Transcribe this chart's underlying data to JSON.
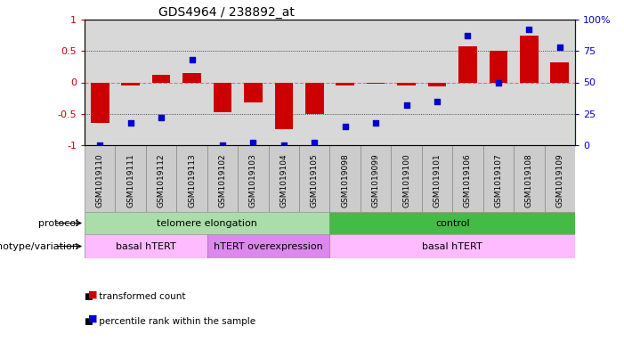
{
  "title": "GDS4964 / 238892_at",
  "samples": [
    "GSM1019110",
    "GSM1019111",
    "GSM1019112",
    "GSM1019113",
    "GSM1019102",
    "GSM1019103",
    "GSM1019104",
    "GSM1019105",
    "GSM1019098",
    "GSM1019099",
    "GSM1019100",
    "GSM1019101",
    "GSM1019106",
    "GSM1019107",
    "GSM1019108",
    "GSM1019109"
  ],
  "transformed_count": [
    -0.65,
    -0.05,
    0.12,
    0.15,
    -0.48,
    -0.32,
    -0.75,
    -0.5,
    -0.05,
    -0.02,
    -0.05,
    -0.07,
    0.57,
    0.5,
    0.75,
    0.32
  ],
  "percentile_rank": [
    0,
    18,
    22,
    68,
    0,
    2,
    0,
    2,
    15,
    18,
    32,
    35,
    87,
    50,
    92,
    78
  ],
  "bar_color": "#cc0000",
  "scatter_color": "#0000cc",
  "plot_bg": "#d8d8d8",
  "ylim_left": [
    -1,
    1
  ],
  "ylim_right": [
    0,
    100
  ],
  "yticks_left": [
    -1,
    -0.5,
    0,
    0.5,
    1
  ],
  "yticks_right": [
    0,
    25,
    50,
    75,
    100
  ],
  "zero_line_color": "#ff6666",
  "dotted_line_color": "#222222",
  "protocol_groups": [
    {
      "label": "telomere elongation",
      "start": 0,
      "end": 8,
      "color": "#aaddaa"
    },
    {
      "label": "control",
      "start": 8,
      "end": 16,
      "color": "#44bb44"
    }
  ],
  "genotype_groups": [
    {
      "label": "basal hTERT",
      "start": 0,
      "end": 4,
      "color": "#ffbbff"
    },
    {
      "label": "hTERT overexpression",
      "start": 4,
      "end": 8,
      "color": "#dd88ee"
    },
    {
      "label": "basal hTERT",
      "start": 8,
      "end": 16,
      "color": "#ffbbff"
    }
  ],
  "legend_items": [
    {
      "label": "transformed count",
      "color": "#cc0000"
    },
    {
      "label": "percentile rank within the sample",
      "color": "#0000cc"
    }
  ],
  "tick_label_fontsize": 6.5,
  "axis_label_color_left": "#cc0000",
  "axis_label_color_right": "#0000cc"
}
